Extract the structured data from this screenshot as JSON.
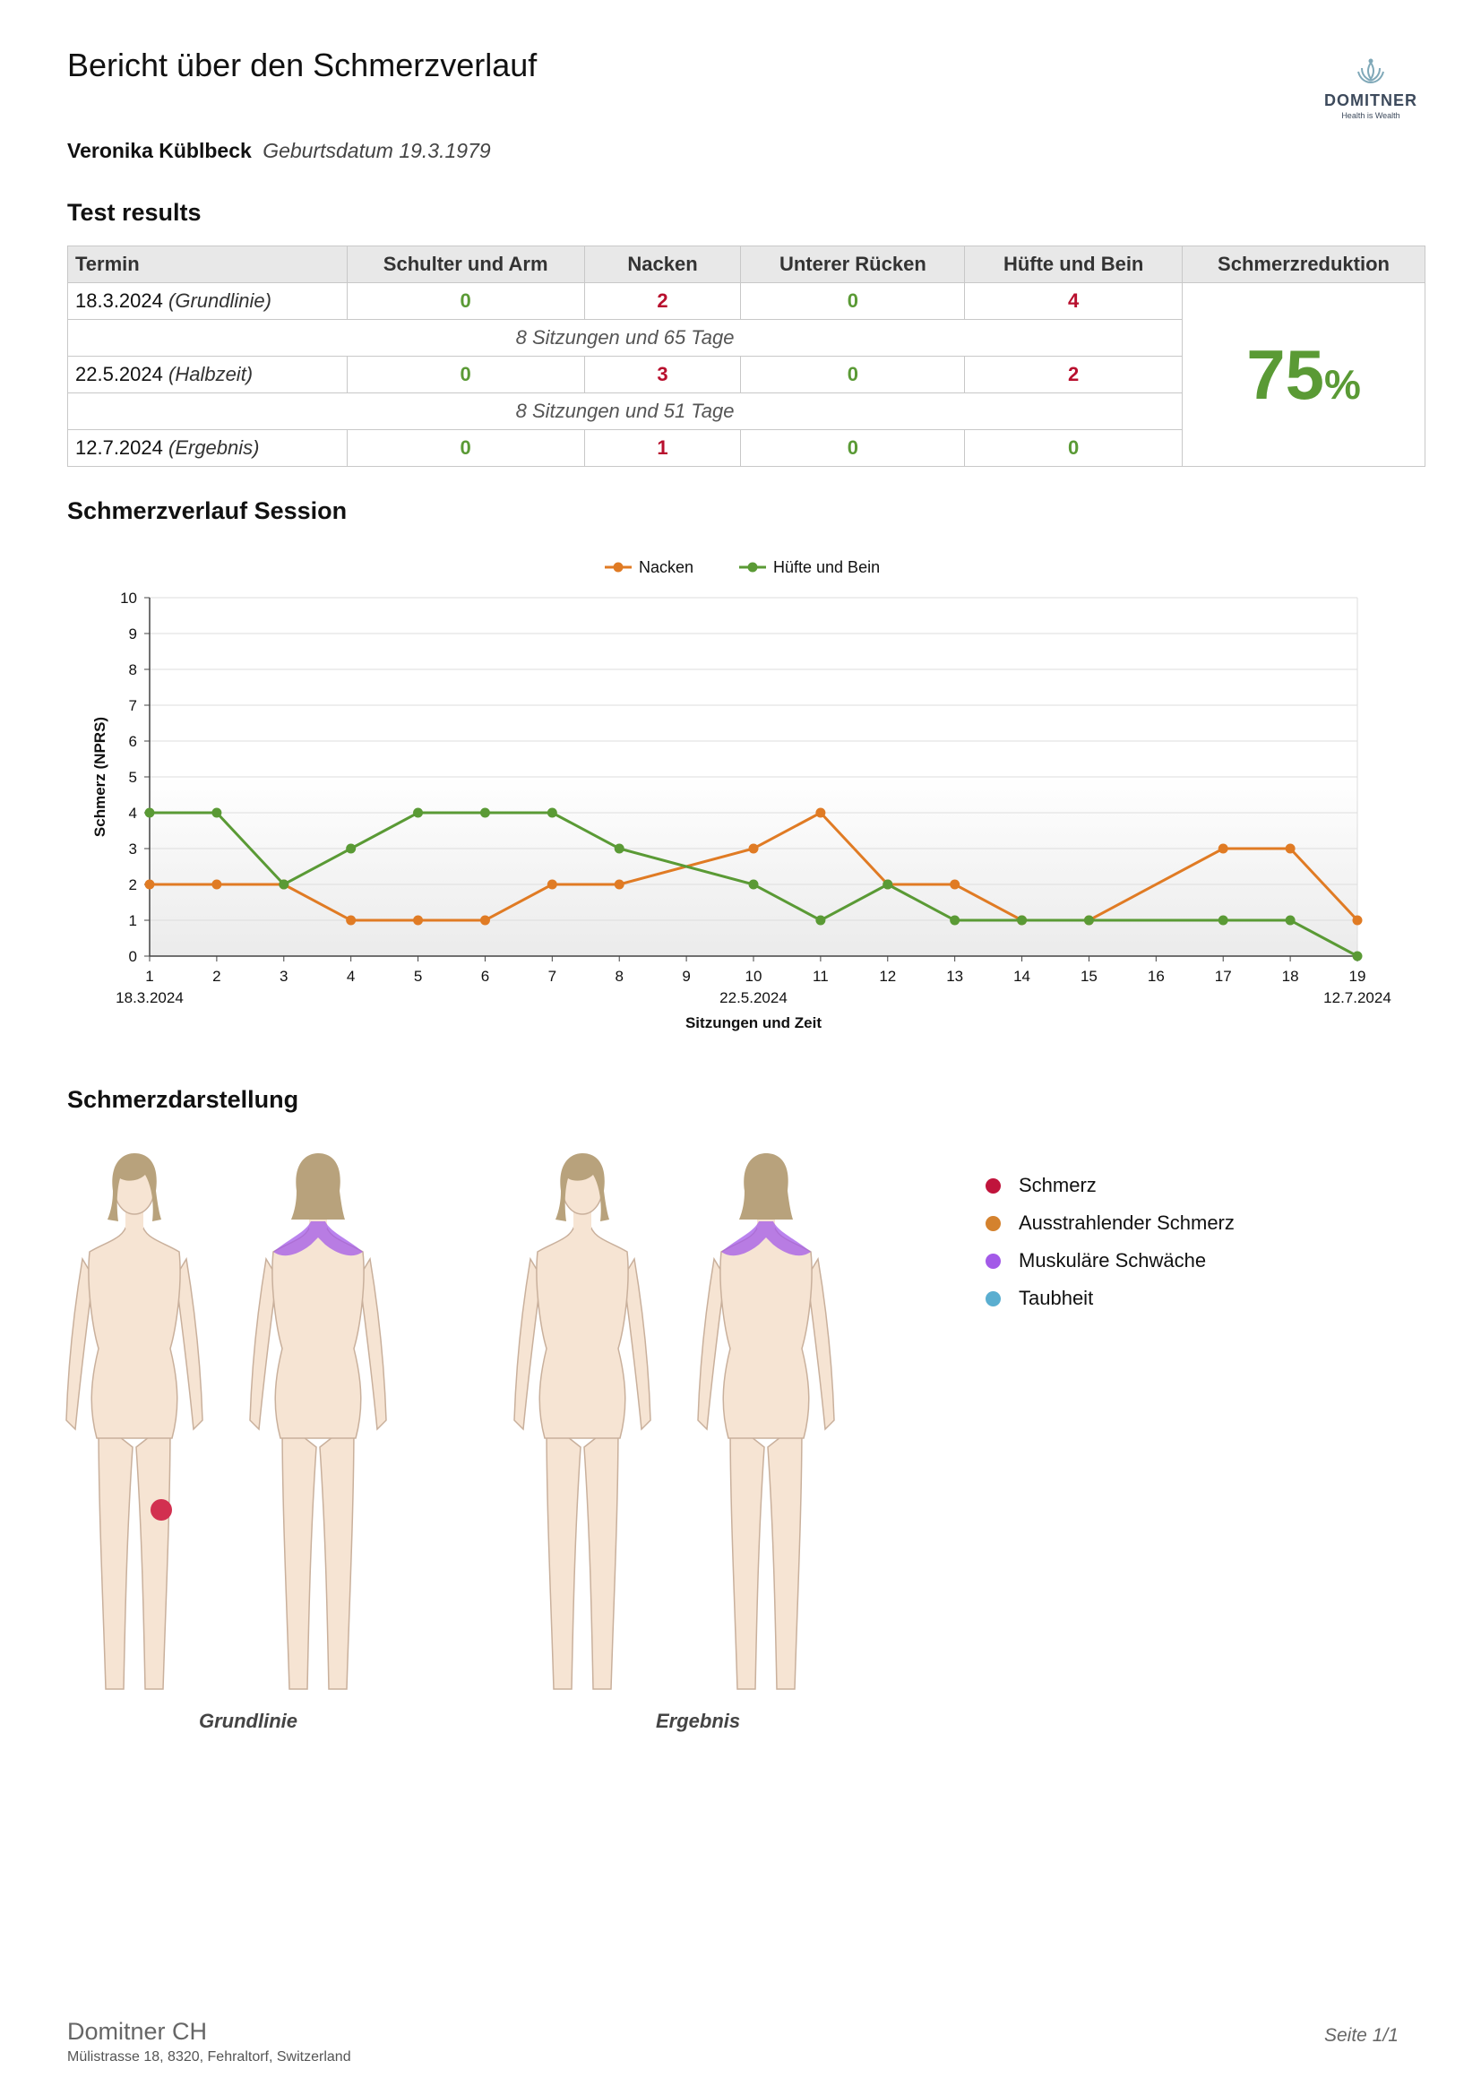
{
  "header": {
    "title": "Bericht über den Schmerzverlauf",
    "logo_name": "DOMITNER",
    "logo_tagline": "Health is Wealth"
  },
  "patient": {
    "name": "Veronika Küblbeck",
    "dob": "Geburtsdatum 19.3.1979"
  },
  "results": {
    "section_title": "Test results",
    "columns": [
      "Termin",
      "Schulter und Arm",
      "Nacken",
      "Unterer Rücken",
      "Hüfte und Bein",
      "Schmerzreduktion"
    ],
    "rows": [
      {
        "date": "18.3.2024",
        "label": "(Grundlinie)",
        "values": [
          "0",
          "2",
          "0",
          "4"
        ]
      },
      {
        "date": "22.5.2024",
        "label": "(Halbzeit)",
        "values": [
          "0",
          "3",
          "0",
          "2"
        ]
      },
      {
        "date": "12.7.2024",
        "label": "(Ergebnis)",
        "values": [
          "0",
          "1",
          "0",
          "0"
        ]
      }
    ],
    "gaps": [
      "8 Sitzungen und 65 Tage",
      "8 Sitzungen und 51 Tage"
    ],
    "reduction_value": "75",
    "reduction_unit": "%"
  },
  "chart_section_title": "Schmerzverlauf Session",
  "chart_data": {
    "type": "line",
    "xlabel": "Sitzungen und Zeit",
    "ylabel": "Schmerz (NPRS)",
    "x": [
      1,
      2,
      3,
      4,
      5,
      6,
      7,
      8,
      9,
      10,
      11,
      12,
      13,
      14,
      15,
      16,
      17,
      18,
      19
    ],
    "date_labels": {
      "1": "18.3.2024",
      "10": "22.5.2024",
      "19": "12.7.2024"
    },
    "ylim": [
      0,
      10
    ],
    "yticks": [
      0,
      1,
      2,
      3,
      4,
      5,
      6,
      7,
      8,
      9,
      10
    ],
    "grid": true,
    "legend_position": "top-center",
    "series": [
      {
        "name": "Nacken",
        "color": "#e07b24",
        "points": [
          [
            1,
            2
          ],
          [
            2,
            2
          ],
          [
            3,
            2
          ],
          [
            4,
            1
          ],
          [
            5,
            1
          ],
          [
            6,
            1
          ],
          [
            7,
            2
          ],
          [
            8,
            2
          ],
          [
            10,
            3
          ],
          [
            11,
            4
          ],
          [
            12,
            2
          ],
          [
            13,
            2
          ],
          [
            14,
            1
          ],
          [
            15,
            1
          ],
          [
            17,
            3
          ],
          [
            18,
            3
          ],
          [
            19,
            1
          ]
        ]
      },
      {
        "name": "Hüfte und Bein",
        "color": "#5a9a35",
        "points": [
          [
            1,
            4
          ],
          [
            2,
            4
          ],
          [
            3,
            2
          ],
          [
            4,
            3
          ],
          [
            5,
            4
          ],
          [
            6,
            4
          ],
          [
            7,
            4
          ],
          [
            8,
            3
          ],
          [
            10,
            2
          ],
          [
            11,
            1
          ],
          [
            12,
            2
          ],
          [
            13,
            1
          ],
          [
            14,
            1
          ],
          [
            15,
            1
          ],
          [
            17,
            1
          ],
          [
            18,
            1
          ],
          [
            19,
            0
          ]
        ]
      }
    ]
  },
  "body_section_title": "Schmerzdarstellung",
  "figure_labels": [
    "Grundlinie",
    "Ergebnis"
  ],
  "legend": [
    {
      "label": "Schmerz",
      "color": "#c0143c"
    },
    {
      "label": "Ausstrahlender Schmerz",
      "color": "#d4822e"
    },
    {
      "label": "Muskuläre Schwäche",
      "color": "#a35ae8"
    },
    {
      "label": "Taubheit",
      "color": "#5aaed0"
    }
  ],
  "footer": {
    "company": "Domitner CH",
    "address": "Mülistrasse 18, 8320, Fehraltorf, Switzerland",
    "page": "Seite 1/1"
  }
}
